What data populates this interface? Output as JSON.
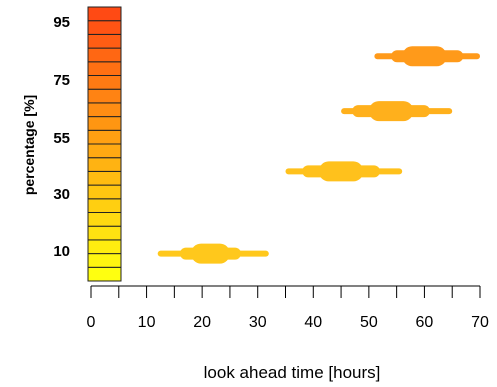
{
  "chart_data": {
    "type": "scatter",
    "title": "",
    "xlabel": "look ahead time [hours]",
    "ylabel": "percentage [%]",
    "xlim": [
      0,
      70
    ],
    "x_ticks": [
      0,
      10,
      20,
      30,
      40,
      50,
      60,
      70
    ],
    "y_tick_labels": [
      "95",
      "75",
      "55",
      "30",
      "10"
    ],
    "ylim": [
      0,
      100
    ],
    "grid": false,
    "legend": "none",
    "color_scale": {
      "levels": 20,
      "low_color": "#ffff10",
      "high_color": "#ff4a14"
    },
    "series": [
      {
        "lead_time": 21,
        "level": 10,
        "color": "#ffc81c",
        "whisker": [
          12,
          32
        ],
        "outer": [
          16,
          27
        ],
        "inner": [
          18,
          25
        ]
      },
      {
        "lead_time": 45,
        "level": 40,
        "color": "#ffc11c",
        "whisker": [
          35,
          56
        ],
        "outer": [
          38,
          52
        ],
        "inner": [
          41,
          49
        ]
      },
      {
        "lead_time": 54,
        "level": 62,
        "color": "#ffb01c",
        "whisker": [
          45,
          65
        ],
        "outer": [
          47,
          61
        ],
        "inner": [
          50,
          58
        ]
      },
      {
        "lead_time": 60,
        "level": 82,
        "color": "#ff9a1a",
        "whisker": [
          51,
          70
        ],
        "outer": [
          54,
          67
        ],
        "inner": [
          56,
          64
        ]
      }
    ]
  }
}
